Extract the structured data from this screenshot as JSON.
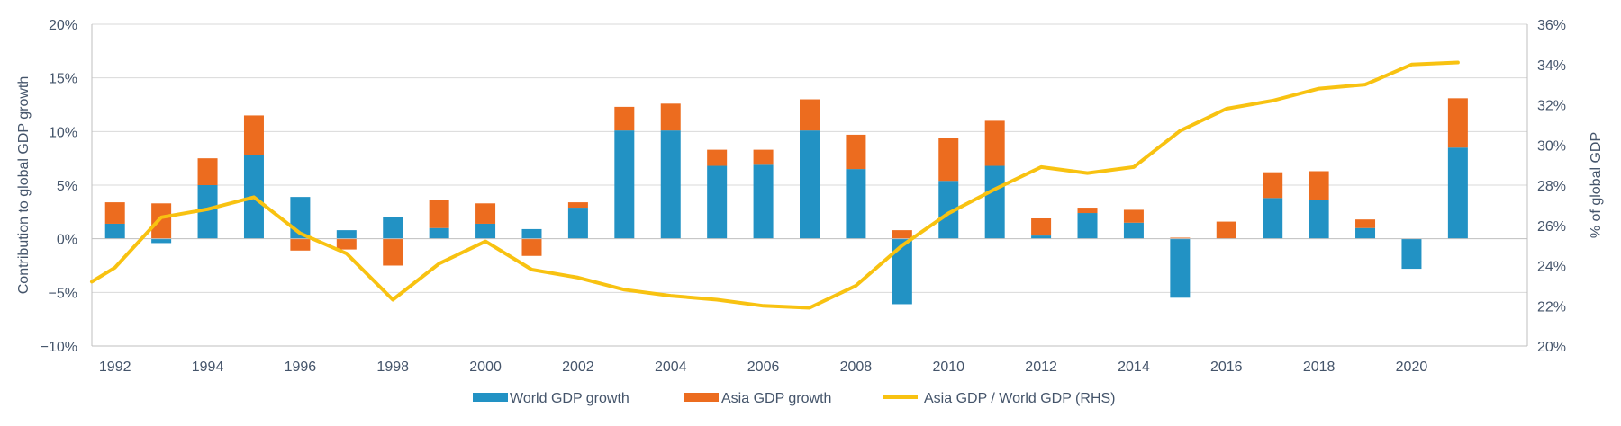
{
  "chart_data": {
    "type": "bar",
    "stacked": true,
    "categories": [
      "1992",
      "1993",
      "1994",
      "1995",
      "1996",
      "1997",
      "1998",
      "1999",
      "2000",
      "2001",
      "2002",
      "2003",
      "2004",
      "2005",
      "2006",
      "2007",
      "2008",
      "2009",
      "2010",
      "2011",
      "2012",
      "2013",
      "2014",
      "2015",
      "2016",
      "2017",
      "2018",
      "2019",
      "2020",
      "2021"
    ],
    "x_tick_labels": [
      "1992",
      "1994",
      "1996",
      "1998",
      "2000",
      "2002",
      "2004",
      "2006",
      "2008",
      "2010",
      "2012",
      "2014",
      "2016",
      "2018",
      "2020"
    ],
    "series": [
      {
        "name": "World GDP growth",
        "type": "bar",
        "axis": "left",
        "color": "#2292c4",
        "values": [
          1.4,
          -0.4,
          5.0,
          7.8,
          3.9,
          0.8,
          2.0,
          1.0,
          1.4,
          0.9,
          2.9,
          10.1,
          10.1,
          6.8,
          6.9,
          10.1,
          6.5,
          -6.1,
          5.4,
          6.8,
          0.3,
          2.4,
          1.5,
          -5.5,
          0.0,
          3.8,
          3.6,
          1.0,
          -2.8,
          8.5
        ]
      },
      {
        "name": "Asia GDP growth",
        "type": "bar",
        "axis": "left",
        "color": "#ec6c1f",
        "values": [
          2.0,
          3.3,
          2.5,
          3.7,
          -1.1,
          -1.0,
          -2.5,
          2.6,
          1.9,
          -1.6,
          0.5,
          2.2,
          2.5,
          1.5,
          1.4,
          2.9,
          3.2,
          0.8,
          4.0,
          4.2,
          1.6,
          0.5,
          1.2,
          0.1,
          1.6,
          2.4,
          2.7,
          0.8,
          0.0,
          4.6
        ]
      },
      {
        "name": "Asia GDP / World GDP (RHS)",
        "type": "line",
        "axis": "right",
        "color": "#f8c211",
        "x": [
          1991.5,
          1992,
          1993,
          1994,
          1995,
          1996,
          1997,
          1998,
          1999,
          2000,
          2001,
          2002,
          2003,
          2004,
          2005,
          2006,
          2007,
          2008,
          2009,
          2010,
          2011,
          2012,
          2013,
          2014,
          2015,
          2016,
          2017,
          2018,
          2019,
          2020,
          2021
        ],
        "values": [
          23.2,
          23.9,
          26.4,
          26.8,
          27.4,
          25.6,
          24.6,
          22.3,
          24.1,
          25.2,
          23.8,
          23.4,
          22.8,
          22.5,
          22.3,
          22.0,
          21.9,
          23.0,
          25.0,
          26.6,
          27.8,
          28.9,
          28.6,
          28.9,
          30.7,
          31.8,
          32.2,
          32.8,
          33.0,
          34.0,
          34.1
        ]
      }
    ],
    "ylabel": "Contribution to global GDP growth",
    "y2label": "% of global GDP",
    "ylim": [
      -10,
      20
    ],
    "yticks": [
      -10,
      -5,
      0,
      5,
      10,
      15,
      20
    ],
    "ytick_labels": [
      "−10%",
      "−5%",
      "0%",
      "5%",
      "10%",
      "15%",
      "20%"
    ],
    "y2lim": [
      20,
      36
    ],
    "y2ticks": [
      20,
      22,
      24,
      26,
      28,
      30,
      32,
      34,
      36
    ],
    "y2tick_labels": [
      "20%",
      "22%",
      "24%",
      "26%",
      "28%",
      "30%",
      "32%",
      "34%",
      "36%"
    ],
    "grid": true,
    "legend_position": "bottom"
  }
}
